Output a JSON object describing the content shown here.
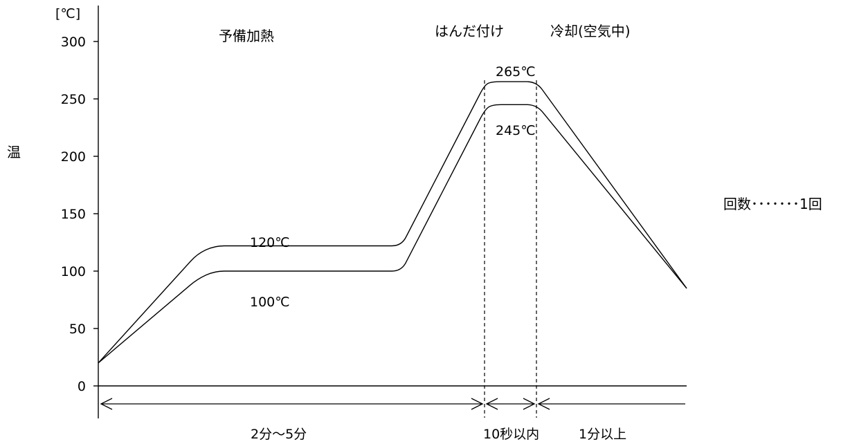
{
  "chart_data": {
    "type": "line",
    "title": "",
    "ylabel": "温",
    "yunit": "[℃]",
    "ylim": [
      0,
      300
    ],
    "yticks": [
      0,
      50,
      100,
      150,
      200,
      250,
      300
    ],
    "series": [
      {
        "values": [
          20,
          115,
          122,
          122,
          262,
          265,
          265,
          85
        ]
      },
      {
        "values": [
          20,
          93,
          100,
          100,
          240,
          245,
          245,
          85
        ]
      }
    ],
    "phases": [
      "予備加熱",
      "はんだ付け",
      "冷却(空気中)"
    ],
    "annotations": [
      "120℃",
      "100℃",
      "265℃",
      "245℃"
    ],
    "durations": [
      "2分～5分",
      "10秒以内",
      "1分以上"
    ],
    "note": "回数･･･････1回"
  }
}
